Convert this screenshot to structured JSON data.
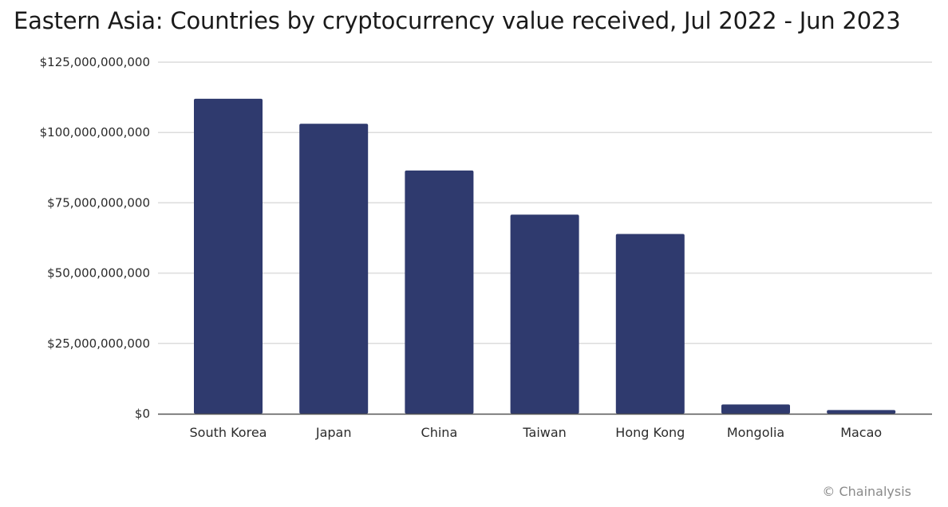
{
  "chart_data": {
    "type": "bar",
    "title": "Eastern Asia: Countries by cryptocurrency value received, Jul 2022 - Jun 2023",
    "xlabel": "",
    "ylabel": "",
    "categories": [
      "South Korea",
      "Japan",
      "China",
      "Taiwan",
      "Hong Kong",
      "Mongolia",
      "Macao"
    ],
    "values": [
      112000000000,
      103100000000,
      86500000000,
      70800000000,
      63900000000,
      3300000000,
      1300000000
    ],
    "ylim": [
      0,
      125000000000
    ],
    "yticks": [
      0,
      25000000000,
      50000000000,
      75000000000,
      100000000000,
      125000000000
    ],
    "ytick_labels": [
      "$0",
      "$25,000,000,000",
      "$50,000,000,000",
      "$75,000,000,000",
      "$100,000,000,000",
      "$125,000,000,000"
    ],
    "grid": true,
    "legend": "none",
    "bar_color": "#2f3a6e",
    "grid_color": "#dcdcdc",
    "axis_color": "#555555"
  },
  "source": "Chainalysis",
  "source_symbol": "©"
}
